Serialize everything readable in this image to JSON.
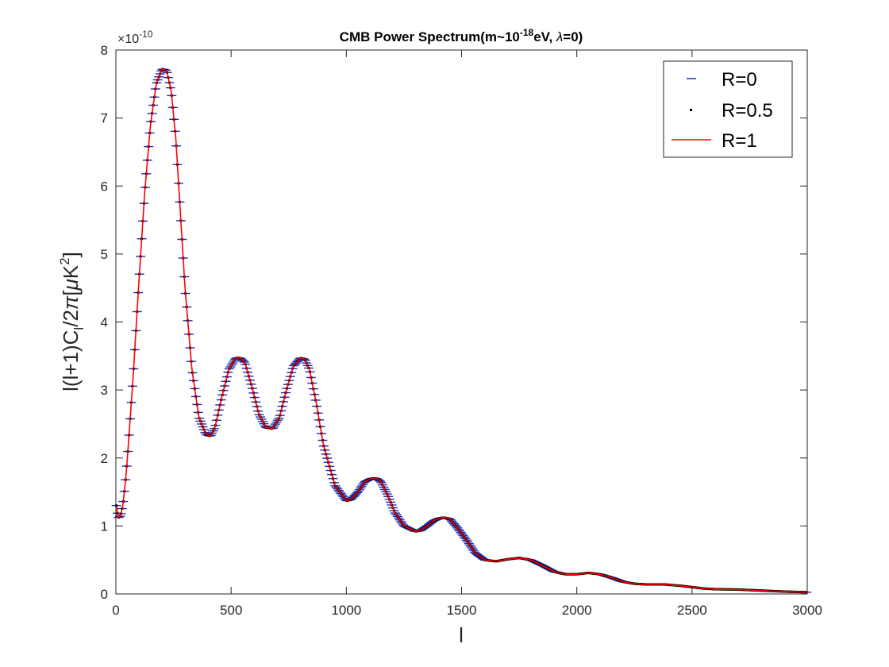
{
  "chart_data": {
    "type": "line",
    "title": {
      "prefix": "CMB Power Spectrum(m~10",
      "sup": "-18",
      "mid": "eV, ",
      "greek": "λ",
      "suffix": "=0)"
    },
    "xlabel": "l",
    "ylabel": {
      "a": "l(l+1)C",
      "sub": "l",
      "b": "/2",
      "pi": "π",
      "c": "[",
      "mu": "μ",
      "d": "K",
      "sup": "2",
      "e": "]"
    },
    "y_exponent": {
      "base": "×10",
      "power": "-10"
    },
    "xlim": [
      0,
      3000
    ],
    "ylim": [
      0,
      8
    ],
    "x_ticks": [
      "0",
      "500",
      "1000",
      "1500",
      "2000",
      "2500",
      "3000"
    ],
    "y_ticks": [
      "0",
      "1",
      "2",
      "3",
      "4",
      "5",
      "6",
      "7",
      "8"
    ],
    "grid": false,
    "legend_position": "top-right",
    "x": [
      2,
      10,
      20,
      30,
      40,
      50,
      75,
      100,
      125,
      150,
      175,
      200,
      220,
      240,
      260,
      280,
      300,
      330,
      360,
      390,
      410,
      430,
      460,
      490,
      520,
      540,
      560,
      590,
      620,
      650,
      680,
      710,
      740,
      770,
      800,
      820,
      840,
      870,
      900,
      950,
      1000,
      1020,
      1050,
      1080,
      1110,
      1130,
      1150,
      1180,
      1210,
      1250,
      1300,
      1320,
      1350,
      1380,
      1410,
      1430,
      1450,
      1480,
      1520,
      1560,
      1600,
      1650,
      1700,
      1750,
      1800,
      1850,
      1900,
      1950,
      2000,
      2050,
      2100,
      2150,
      2200,
      2250,
      2300,
      2380,
      2450,
      2500,
      2550,
      2600,
      2700,
      2800,
      2900,
      3000
    ],
    "series": [
      {
        "name": "R=0",
        "color": "#1f2db5",
        "marker": "dash",
        "values": [
          1.3,
          1.12,
          1.15,
          1.3,
          1.6,
          2.0,
          3.2,
          4.6,
          5.9,
          6.9,
          7.5,
          7.72,
          7.7,
          7.4,
          6.7,
          5.6,
          4.5,
          3.3,
          2.6,
          2.35,
          2.32,
          2.45,
          2.9,
          3.3,
          3.47,
          3.47,
          3.4,
          3.05,
          2.65,
          2.45,
          2.43,
          2.6,
          3.0,
          3.35,
          3.47,
          3.45,
          3.3,
          2.8,
          2.2,
          1.6,
          1.37,
          1.39,
          1.5,
          1.65,
          1.7,
          1.7,
          1.65,
          1.45,
          1.2,
          1.0,
          0.92,
          0.93,
          1.0,
          1.08,
          1.12,
          1.12,
          1.1,
          0.98,
          0.8,
          0.6,
          0.5,
          0.48,
          0.51,
          0.53,
          0.5,
          0.42,
          0.33,
          0.29,
          0.29,
          0.31,
          0.29,
          0.24,
          0.18,
          0.15,
          0.14,
          0.14,
          0.12,
          0.1,
          0.08,
          0.07,
          0.065,
          0.05,
          0.035,
          0.025
        ]
      },
      {
        "name": "R=0.5",
        "color": "#000000",
        "marker": "dot"
      },
      {
        "name": "R=1",
        "color": "#ff0000",
        "marker": "line"
      }
    ]
  }
}
